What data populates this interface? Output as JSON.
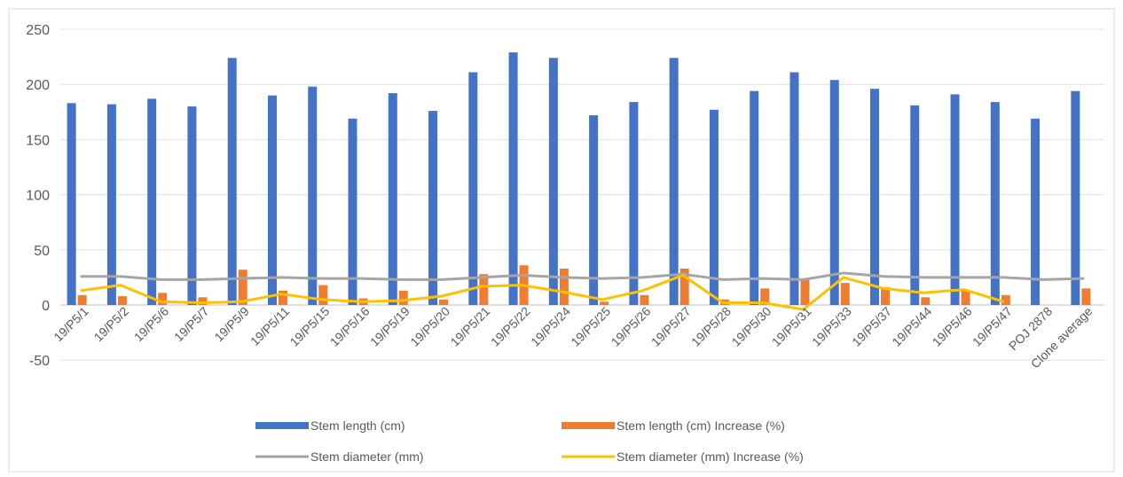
{
  "chart_data": {
    "type": "bar",
    "title": "",
    "xlabel": "",
    "ylabel": "",
    "ylim": [
      -50,
      250
    ],
    "yticks": [
      -50,
      0,
      50,
      100,
      150,
      200,
      250
    ],
    "grid": true,
    "legend_position": "bottom",
    "categories": [
      "19/P5/1",
      "19/P5/2",
      "19/P5/6",
      "19/P5/7",
      "19/P5/9",
      "19/P5/11",
      "19/P5/15",
      "19/P5/16",
      "19/P5/19",
      "19/P5/20",
      "19/P5/21",
      "19/P5/22",
      "19/P5/24",
      "19/P5/25",
      "19/P5/26",
      "19/P5/27",
      "19/P5/28",
      "19/P5/30",
      "19/P5/31",
      "19/P5/33",
      "19/P5/37",
      "19/P5/44",
      "19/P5/46",
      "19/P5/47",
      "POJ 2878",
      "Clone average"
    ],
    "series": [
      {
        "name": "Stem length (cm)",
        "kind": "bar",
        "color": "#4472C4",
        "values": [
          183,
          182,
          187,
          180,
          224,
          190,
          198,
          169,
          192,
          176,
          211,
          229,
          224,
          172,
          184,
          224,
          177,
          194,
          211,
          204,
          196,
          181,
          191,
          184,
          169,
          194
        ]
      },
      {
        "name": "Stem length (cm) Increase (%)",
        "kind": "bar",
        "color": "#ED7D31",
        "values": [
          9,
          8,
          11,
          7,
          32,
          13,
          18,
          6,
          13,
          5,
          28,
          36,
          33,
          3,
          9,
          33,
          5,
          15,
          23,
          20,
          16,
          7,
          13,
          9,
          null,
          15
        ]
      },
      {
        "name": "Stem diameter (mm)",
        "kind": "line",
        "color": "#A5A5A5",
        "values": [
          26,
          26,
          23,
          23,
          24,
          25,
          24,
          24,
          23,
          23,
          25,
          27,
          25,
          24,
          25,
          28,
          23,
          24,
          23,
          29,
          26,
          25,
          25,
          25,
          23,
          24
        ]
      },
      {
        "name": "Stem diameter (mm) Increase (%)",
        "kind": "line",
        "color": "#FFC000",
        "values": [
          13,
          18,
          3,
          2,
          3,
          10,
          5,
          3,
          4,
          8,
          17,
          18,
          12,
          5,
          13,
          27,
          2,
          2,
          -4,
          25,
          15,
          11,
          14,
          3,
          null,
          null
        ]
      }
    ]
  }
}
